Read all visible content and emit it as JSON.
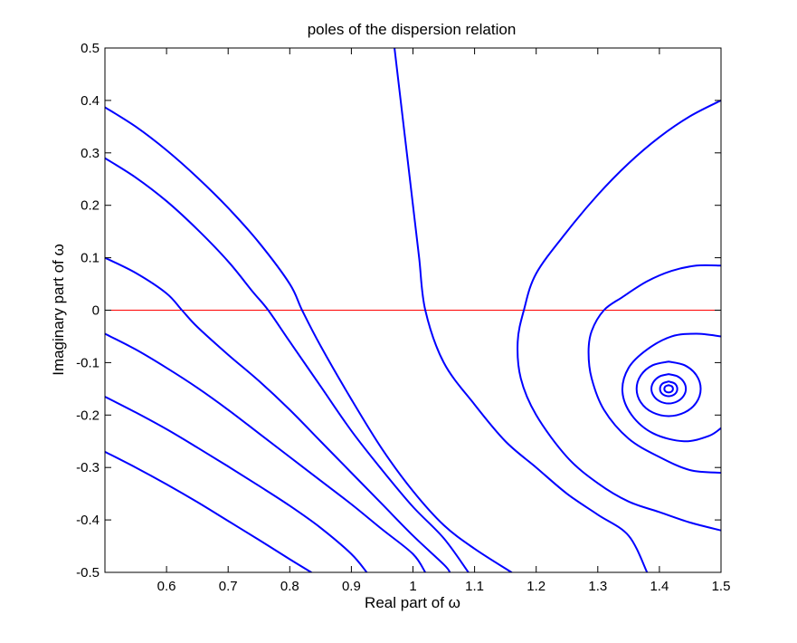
{
  "chart_data": {
    "type": "line",
    "title": "poles of the dispersion relation",
    "xlabel": "Real part of ω",
    "ylabel": "Imaginary part of ω",
    "xlim": [
      0.5,
      1.5
    ],
    "ylim": [
      -0.5,
      0.5
    ],
    "xticks": [
      0.6,
      0.7,
      0.8,
      0.9,
      1,
      1.1,
      1.2,
      1.3,
      1.4,
      1.5
    ],
    "yticks": [
      -0.5,
      -0.4,
      -0.3,
      -0.2,
      -0.1,
      0,
      0.1,
      0.2,
      0.3,
      0.4,
      0.5
    ],
    "xtick_labels": [
      "0.6",
      "0.7",
      "0.8",
      "0.9",
      "1",
      "1.1",
      "1.2",
      "1.3",
      "1.4",
      "1.5"
    ],
    "ytick_labels": [
      "-0.5",
      "-0.4",
      "-0.3",
      "-0.2",
      "-0.1",
      "0",
      "0.1",
      "0.2",
      "0.3",
      "0.4",
      "0.5"
    ],
    "grid": false,
    "line_color": "#0000ff",
    "reference_color": "#ff0000",
    "reference_line": {
      "y": 0
    },
    "series": [
      {
        "points": [
          [
            0.5,
            0.387
          ],
          [
            0.55,
            0.35
          ],
          [
            0.6,
            0.305
          ],
          [
            0.65,
            0.253
          ],
          [
            0.7,
            0.195
          ],
          [
            0.75,
            0.129
          ],
          [
            0.8,
            0.05
          ],
          [
            0.82,
            0.0
          ],
          [
            0.85,
            -0.068
          ],
          [
            0.9,
            -0.17
          ],
          [
            0.95,
            -0.265
          ],
          [
            1.0,
            -0.345
          ],
          [
            1.05,
            -0.41
          ],
          [
            1.1,
            -0.455
          ],
          [
            1.16,
            -0.5
          ]
        ]
      },
      {
        "points": [
          [
            0.5,
            0.29
          ],
          [
            0.55,
            0.253
          ],
          [
            0.6,
            0.208
          ],
          [
            0.65,
            0.154
          ],
          [
            0.7,
            0.093
          ],
          [
            0.74,
            0.035
          ],
          [
            0.765,
            0.0
          ],
          [
            0.8,
            -0.06
          ],
          [
            0.85,
            -0.145
          ],
          [
            0.9,
            -0.23
          ],
          [
            0.95,
            -0.305
          ],
          [
            1.0,
            -0.375
          ],
          [
            1.05,
            -0.435
          ],
          [
            1.09,
            -0.5
          ]
        ]
      },
      {
        "points": [
          [
            0.5,
            0.1
          ],
          [
            0.55,
            0.071
          ],
          [
            0.6,
            0.032
          ],
          [
            0.625,
            0.0
          ],
          [
            0.65,
            -0.032
          ],
          [
            0.7,
            -0.085
          ],
          [
            0.75,
            -0.135
          ],
          [
            0.8,
            -0.19
          ],
          [
            0.85,
            -0.25
          ],
          [
            0.9,
            -0.31
          ],
          [
            0.95,
            -0.37
          ],
          [
            1.0,
            -0.43
          ],
          [
            1.05,
            -0.485
          ],
          [
            1.06,
            -0.5
          ]
        ]
      },
      {
        "points": [
          [
            0.5,
            -0.045
          ],
          [
            0.55,
            -0.075
          ],
          [
            0.6,
            -0.11
          ],
          [
            0.65,
            -0.148
          ],
          [
            0.7,
            -0.19
          ],
          [
            0.75,
            -0.235
          ],
          [
            0.8,
            -0.28
          ],
          [
            0.85,
            -0.325
          ],
          [
            0.9,
            -0.37
          ],
          [
            0.95,
            -0.418
          ],
          [
            1.0,
            -0.465
          ],
          [
            1.02,
            -0.5
          ]
        ]
      },
      {
        "points": [
          [
            0.5,
            -0.165
          ],
          [
            0.55,
            -0.195
          ],
          [
            0.6,
            -0.227
          ],
          [
            0.65,
            -0.262
          ],
          [
            0.7,
            -0.298
          ],
          [
            0.75,
            -0.335
          ],
          [
            0.8,
            -0.373
          ],
          [
            0.85,
            -0.415
          ],
          [
            0.9,
            -0.465
          ],
          [
            0.925,
            -0.5
          ]
        ]
      },
      {
        "points": [
          [
            0.5,
            -0.27
          ],
          [
            0.55,
            -0.3
          ],
          [
            0.6,
            -0.332
          ],
          [
            0.65,
            -0.366
          ],
          [
            0.7,
            -0.402
          ],
          [
            0.75,
            -0.438
          ],
          [
            0.8,
            -0.475
          ],
          [
            0.835,
            -0.5
          ]
        ]
      },
      {
        "points": [
          [
            0.97,
            0.5
          ],
          [
            0.98,
            0.4
          ],
          [
            0.99,
            0.3
          ],
          [
            1.0,
            0.2
          ],
          [
            1.01,
            0.1
          ],
          [
            1.02,
            0.0
          ],
          [
            1.05,
            -0.1
          ],
          [
            1.1,
            -0.18
          ],
          [
            1.15,
            -0.25
          ],
          [
            1.2,
            -0.3
          ],
          [
            1.25,
            -0.35
          ],
          [
            1.3,
            -0.39
          ],
          [
            1.35,
            -0.43
          ],
          [
            1.38,
            -0.5
          ]
        ]
      },
      {
        "points": [
          [
            1.5,
            0.4
          ],
          [
            1.45,
            0.37
          ],
          [
            1.4,
            0.33
          ],
          [
            1.35,
            0.28
          ],
          [
            1.3,
            0.22
          ],
          [
            1.25,
            0.15
          ],
          [
            1.2,
            0.07
          ],
          [
            1.18,
            0.0
          ],
          [
            1.17,
            -0.06
          ],
          [
            1.175,
            -0.13
          ],
          [
            1.2,
            -0.2
          ],
          [
            1.25,
            -0.28
          ],
          [
            1.3,
            -0.33
          ],
          [
            1.35,
            -0.365
          ],
          [
            1.4,
            -0.385
          ],
          [
            1.45,
            -0.405
          ],
          [
            1.5,
            -0.42
          ]
        ]
      },
      {
        "points": [
          [
            1.5,
            0.085
          ],
          [
            1.46,
            0.085
          ],
          [
            1.42,
            0.075
          ],
          [
            1.38,
            0.055
          ],
          [
            1.34,
            0.025
          ],
          [
            1.31,
            0.0
          ],
          [
            1.29,
            -0.04
          ],
          [
            1.285,
            -0.08
          ],
          [
            1.29,
            -0.13
          ],
          [
            1.31,
            -0.19
          ],
          [
            1.35,
            -0.245
          ],
          [
            1.4,
            -0.28
          ],
          [
            1.45,
            -0.305
          ],
          [
            1.5,
            -0.31
          ]
        ]
      },
      {
        "points": [
          [
            1.5,
            -0.05
          ],
          [
            1.46,
            -0.045
          ],
          [
            1.42,
            -0.05
          ],
          [
            1.38,
            -0.075
          ],
          [
            1.35,
            -0.11
          ],
          [
            1.34,
            -0.155
          ],
          [
            1.355,
            -0.2
          ],
          [
            1.39,
            -0.235
          ],
          [
            1.44,
            -0.25
          ],
          [
            1.48,
            -0.24
          ],
          [
            1.5,
            -0.225
          ]
        ]
      },
      {
        "points": [
          [
            1.415,
            -0.098
          ],
          [
            1.441,
            -0.105
          ],
          [
            1.46,
            -0.124
          ],
          [
            1.467,
            -0.15
          ],
          [
            1.46,
            -0.176
          ],
          [
            1.441,
            -0.195
          ],
          [
            1.415,
            -0.202
          ],
          [
            1.389,
            -0.195
          ],
          [
            1.37,
            -0.176
          ],
          [
            1.363,
            -0.15
          ],
          [
            1.37,
            -0.124
          ],
          [
            1.389,
            -0.105
          ],
          [
            1.415,
            -0.098
          ]
        ]
      },
      {
        "points": [
          [
            1.415,
            -0.122
          ],
          [
            1.429,
            -0.126
          ],
          [
            1.439,
            -0.136
          ],
          [
            1.443,
            -0.15
          ],
          [
            1.439,
            -0.164
          ],
          [
            1.429,
            -0.174
          ],
          [
            1.415,
            -0.178
          ],
          [
            1.401,
            -0.174
          ],
          [
            1.391,
            -0.164
          ],
          [
            1.387,
            -0.15
          ],
          [
            1.391,
            -0.136
          ],
          [
            1.401,
            -0.126
          ],
          [
            1.415,
            -0.122
          ]
        ]
      },
      {
        "points": [
          [
            1.415,
            -0.136
          ],
          [
            1.425,
            -0.14
          ],
          [
            1.429,
            -0.15
          ],
          [
            1.425,
            -0.16
          ],
          [
            1.415,
            -0.164
          ],
          [
            1.405,
            -0.16
          ],
          [
            1.401,
            -0.15
          ],
          [
            1.405,
            -0.14
          ],
          [
            1.415,
            -0.136
          ]
        ]
      },
      {
        "points": [
          [
            1.415,
            -0.143
          ],
          [
            1.42,
            -0.145
          ],
          [
            1.422,
            -0.15
          ],
          [
            1.42,
            -0.155
          ],
          [
            1.415,
            -0.157
          ],
          [
            1.41,
            -0.155
          ],
          [
            1.408,
            -0.15
          ],
          [
            1.41,
            -0.145
          ],
          [
            1.415,
            -0.143
          ]
        ]
      }
    ]
  }
}
